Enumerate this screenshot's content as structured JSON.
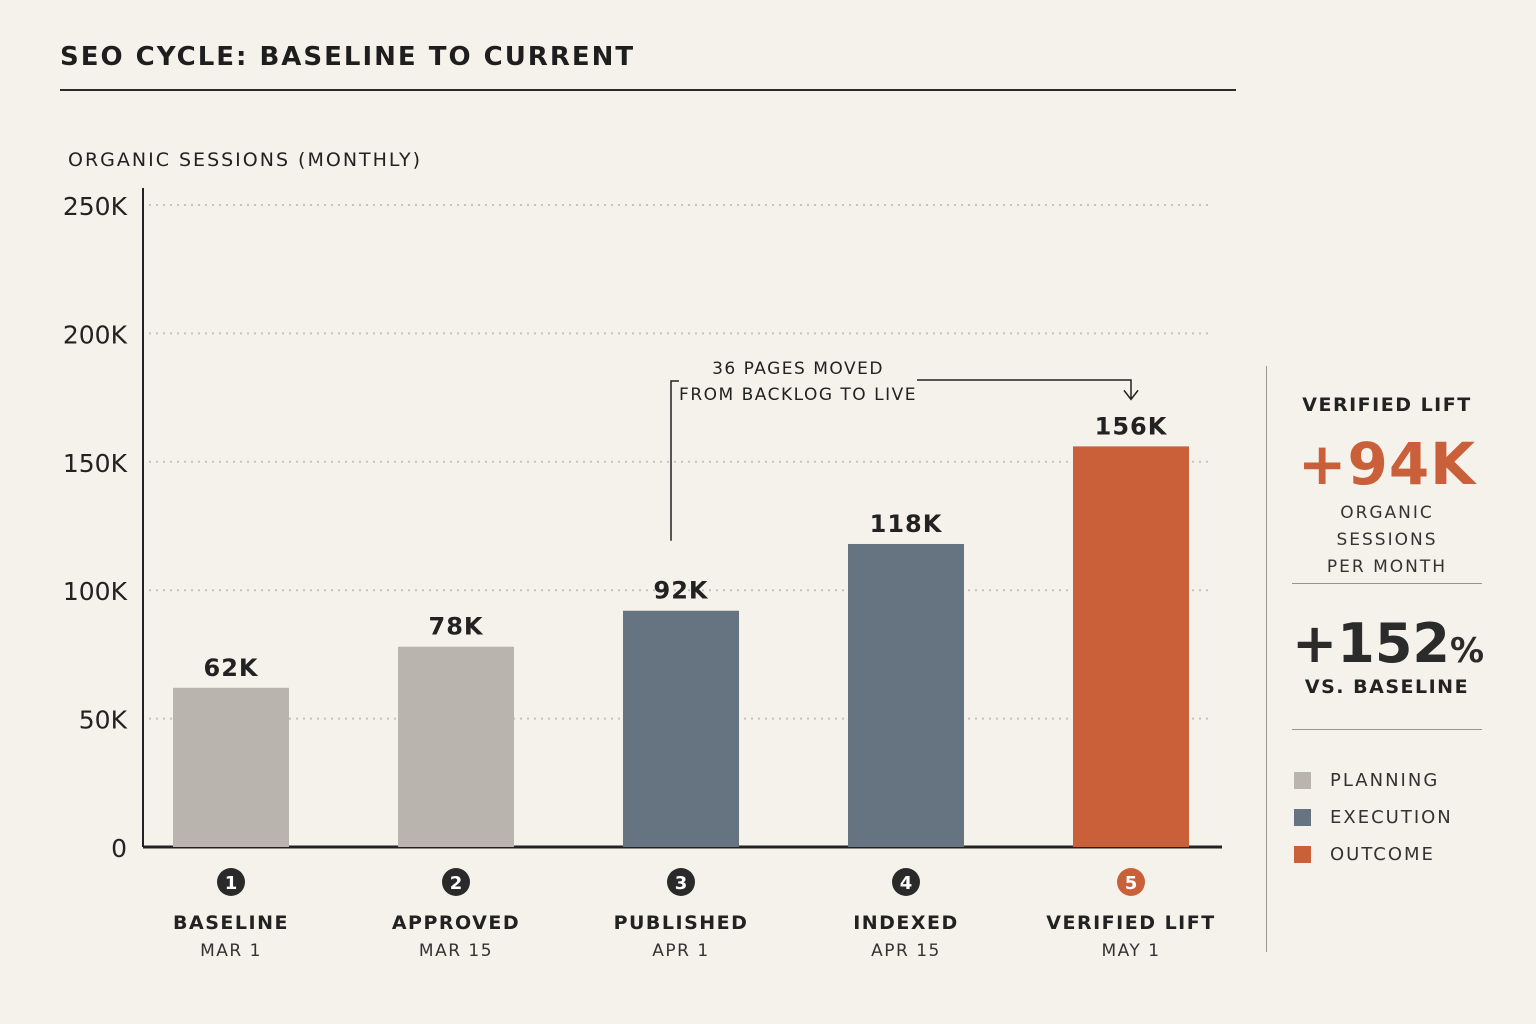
{
  "title": "SEO CYCLE:  BASELINE TO CURRENT",
  "colors": {
    "planning": "#b9b5ae",
    "execution": "#667381",
    "outcome": "#c9603a",
    "text": "#222222",
    "grid": "#c8c2ba"
  },
  "chart_data": {
    "type": "bar",
    "ylabel": "ORGANIC SESSIONS (MONTHLY)",
    "ylim": [
      0,
      250000
    ],
    "yticks": [
      {
        "value": 0,
        "label": "0"
      },
      {
        "value": 50000,
        "label": "50K"
      },
      {
        "value": 100000,
        "label": "100K"
      },
      {
        "value": 150000,
        "label": "150K"
      },
      {
        "value": 200000,
        "label": "200K"
      },
      {
        "value": 250000,
        "label": "250K"
      }
    ],
    "grid": "dotted-horizontal",
    "categories": [
      {
        "step": "1",
        "label": "BASELINE",
        "date": "MAR 1",
        "value": 62000,
        "value_label": "62K",
        "phase": "planning"
      },
      {
        "step": "2",
        "label": "APPROVED",
        "date": "MAR 15",
        "value": 78000,
        "value_label": "78K",
        "phase": "planning"
      },
      {
        "step": "3",
        "label": "PUBLISHED",
        "date": "APR 1",
        "value": 92000,
        "value_label": "92K",
        "phase": "execution"
      },
      {
        "step": "4",
        "label": "INDEXED",
        "date": "APR 15",
        "value": 118000,
        "value_label": "118K",
        "phase": "execution"
      },
      {
        "step": "5",
        "label": "VERIFIED LIFT",
        "date": "MAY 1",
        "value": 156000,
        "value_label": "156K",
        "phase": "outcome"
      }
    ],
    "annotation": {
      "lines": [
        "36 PAGES MOVED",
        "FROM BACKLOG TO LIVE"
      ],
      "from_category": "3",
      "to_category": "5"
    }
  },
  "summary": {
    "lift_label": "VERIFIED LIFT",
    "lift_value": "+94K",
    "lift_sub_line1": "ORGANIC SESSIONS",
    "lift_sub_line2": "PER MONTH",
    "pct_value": "+152",
    "pct_sign": "%",
    "pct_sub": "VS. BASELINE"
  },
  "legend": [
    {
      "label": "PLANNING",
      "phase": "planning"
    },
    {
      "label": "EXECUTION",
      "phase": "execution"
    },
    {
      "label": "OUTCOME",
      "phase": "outcome"
    }
  ]
}
